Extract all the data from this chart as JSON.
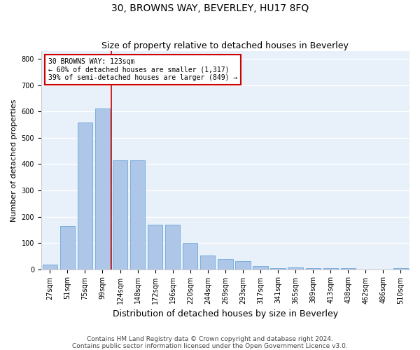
{
  "title": "30, BROWNS WAY, BEVERLEY, HU17 8FQ",
  "subtitle": "Size of property relative to detached houses in Beverley",
  "xlabel": "Distribution of detached houses by size in Beverley",
  "ylabel": "Number of detached properties",
  "bar_labels": [
    "27sqm",
    "51sqm",
    "75sqm",
    "99sqm",
    "124sqm",
    "148sqm",
    "172sqm",
    "196sqm",
    "220sqm",
    "244sqm",
    "269sqm",
    "293sqm",
    "317sqm",
    "341sqm",
    "365sqm",
    "389sqm",
    "413sqm",
    "438sqm",
    "462sqm",
    "486sqm",
    "510sqm"
  ],
  "bar_values": [
    18,
    163,
    558,
    613,
    415,
    415,
    170,
    170,
    100,
    52,
    40,
    30,
    13,
    5,
    8,
    5,
    5,
    5,
    0,
    0,
    5
  ],
  "bar_color": "#aec6e8",
  "bar_edge_color": "#5a9fd4",
  "property_line_label": "30 BROWNS WAY: 123sqm",
  "annotation_line1": "← 60% of detached houses are smaller (1,317)",
  "annotation_line2": "39% of semi-detached houses are larger (849) →",
  "annotation_box_color": "#ffffff",
  "annotation_box_edge_color": "#cc0000",
  "vline_color": "#cc0000",
  "ylim": [
    0,
    830
  ],
  "yticks": [
    0,
    100,
    200,
    300,
    400,
    500,
    600,
    700,
    800
  ],
  "background_color": "#e8f0fa",
  "grid_color": "#ffffff",
  "footer": "Contains HM Land Registry data © Crown copyright and database right 2024.\nContains public sector information licensed under the Open Government Licence v3.0.",
  "title_fontsize": 10,
  "subtitle_fontsize": 9,
  "xlabel_fontsize": 9,
  "ylabel_fontsize": 8,
  "tick_fontsize": 7,
  "footer_fontsize": 6.5
}
